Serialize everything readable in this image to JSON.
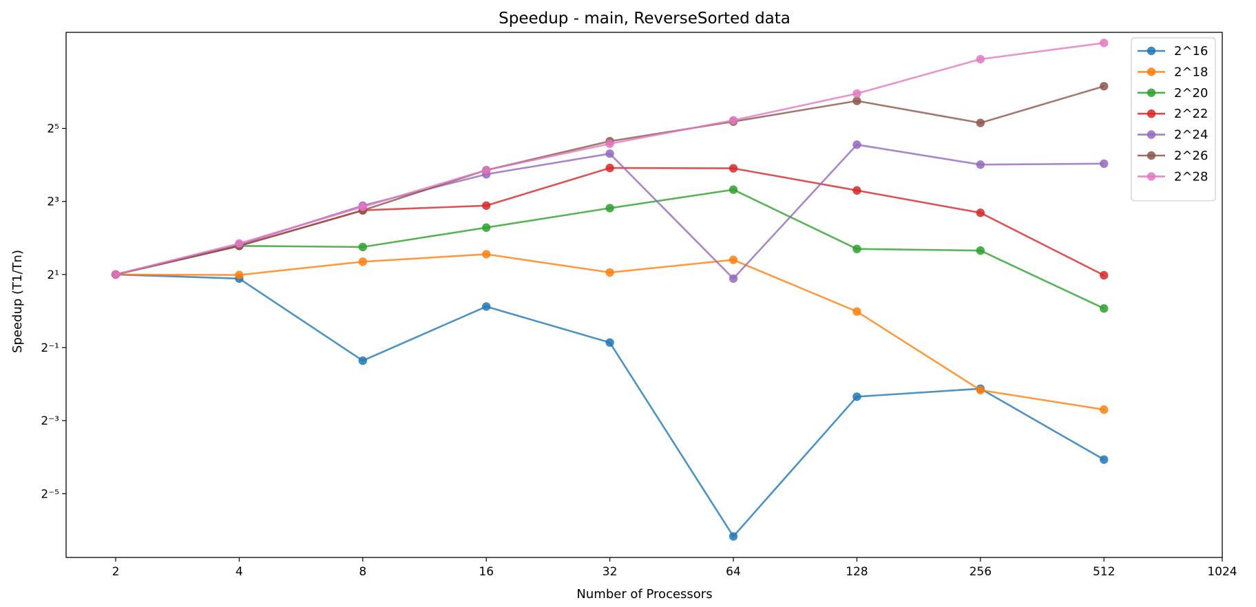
{
  "chart_data": {
    "type": "line",
    "title": "Speedup - main, ReverseSorted data",
    "xlabel": "Number of Processors",
    "ylabel": "Speedup (T1/Tn)",
    "x_scale": "log2",
    "y_scale": "log2",
    "x": [
      2,
      4,
      8,
      16,
      32,
      64,
      128,
      256,
      512
    ],
    "xticks": [
      2,
      4,
      8,
      16,
      32,
      64,
      128,
      256,
      512,
      1024
    ],
    "xlim": [
      2,
      1024
    ],
    "ytick_exponents": [
      -5,
      -3,
      -1,
      1,
      3,
      5
    ],
    "ylim": [
      0.00932,
      198.0
    ],
    "grid": false,
    "legend_position": "top-right",
    "series": [
      {
        "name": "2^16",
        "color": "#1f77b4",
        "values": [
          2.0,
          1.85,
          0.39,
          1.09,
          0.55,
          0.0139,
          0.197,
          0.229,
          0.0597
        ]
      },
      {
        "name": "2^18",
        "color": "#ff7f0e",
        "values": [
          2.0,
          1.98,
          2.55,
          2.94,
          2.08,
          2.64,
          0.99,
          0.223,
          0.154
        ]
      },
      {
        "name": "2^20",
        "color": "#2ca02c",
        "values": [
          2.0,
          3.44,
          3.37,
          4.87,
          7.05,
          10.0,
          3.25,
          3.15,
          1.05
        ]
      },
      {
        "name": "2^22",
        "color": "#d62728",
        "values": [
          2.0,
          3.44,
          6.76,
          7.39,
          15.1,
          15.0,
          9.86,
          6.45,
          1.97
        ]
      },
      {
        "name": "2^24",
        "color": "#9467bd",
        "values": [
          2.0,
          3.53,
          7.39,
          13.4,
          19.8,
          1.85,
          23.5,
          16.1,
          16.4
        ]
      },
      {
        "name": "2^26",
        "color": "#8c564b",
        "values": [
          2.0,
          3.44,
          6.76,
          14.5,
          25.1,
          36.4,
          53.9,
          35.5,
          71.2
        ]
      },
      {
        "name": "2^28",
        "color": "#e377c2",
        "values": [
          2.0,
          3.61,
          7.22,
          14.5,
          23.9,
          37.3,
          61.9,
          119.0,
          162.0
        ]
      }
    ]
  }
}
